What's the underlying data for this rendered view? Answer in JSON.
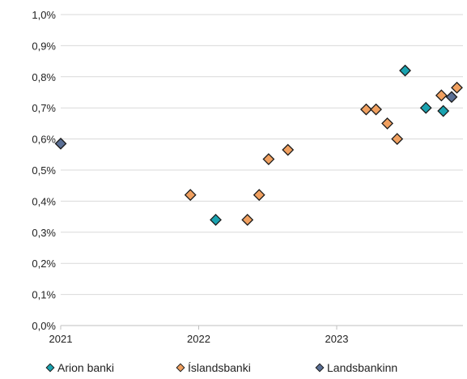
{
  "chart_data": {
    "type": "scatter",
    "x_ticks": [
      "2021",
      "2022",
      "2023"
    ],
    "y_ticks": [
      "0,0%",
      "0,1%",
      "0,2%",
      "0,3%",
      "0,4%",
      "0,5%",
      "0,6%",
      "0,7%",
      "0,8%",
      "0,9%",
      "1,0%"
    ],
    "xlim": [
      "2021-01-01",
      "2023-12-01"
    ],
    "ylim": [
      0,
      1.0
    ],
    "y_unit": "%",
    "grid": "horizontal",
    "legend_position": "bottom",
    "series": [
      {
        "name": "Arion banki",
        "color": "#1aa3b0",
        "points": [
          {
            "x": "2022-02-15",
            "y": 0.34
          },
          {
            "x": "2023-07-01",
            "y": 0.82
          },
          {
            "x": "2023-08-25",
            "y": 0.7
          },
          {
            "x": "2023-10-10",
            "y": 0.69
          }
        ]
      },
      {
        "name": "Íslandsbanki",
        "color": "#f0a060",
        "points": [
          {
            "x": "2021-12-10",
            "y": 0.42
          },
          {
            "x": "2022-05-10",
            "y": 0.34
          },
          {
            "x": "2022-06-10",
            "y": 0.42
          },
          {
            "x": "2022-07-05",
            "y": 0.535
          },
          {
            "x": "2022-08-25",
            "y": 0.565
          },
          {
            "x": "2023-03-20",
            "y": 0.695
          },
          {
            "x": "2023-04-15",
            "y": 0.695
          },
          {
            "x": "2023-05-15",
            "y": 0.65
          },
          {
            "x": "2023-06-10",
            "y": 0.6
          },
          {
            "x": "2023-10-05",
            "y": 0.74
          },
          {
            "x": "2023-11-15",
            "y": 0.765
          }
        ]
      },
      {
        "name": "Landsbankinn",
        "color": "#5a6f95",
        "points": [
          {
            "x": "2021-01-01",
            "y": 0.585
          },
          {
            "x": "2023-11-01",
            "y": 0.735
          }
        ]
      }
    ]
  }
}
